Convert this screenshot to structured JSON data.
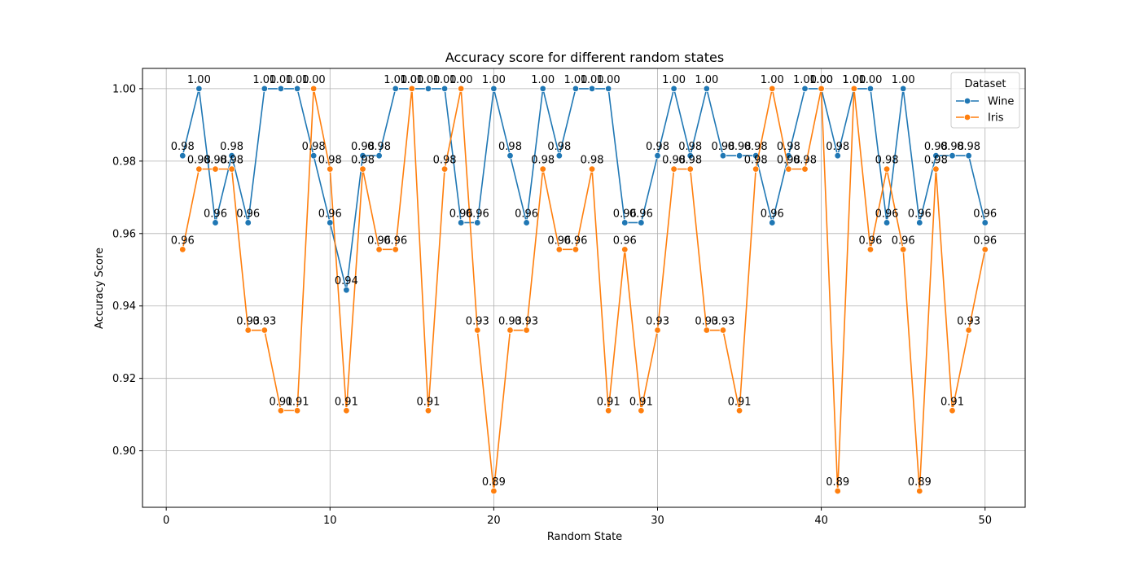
{
  "chart_data": {
    "type": "line",
    "title": "Accuracy score for different random states",
    "xlabel": "Random State",
    "ylabel": "Accuracy Score",
    "xlim": [
      -1.45,
      52.45
    ],
    "ylim": [
      0.8844,
      1.0056
    ],
    "xticks": [
      0,
      10,
      20,
      30,
      40,
      50
    ],
    "xtick_labels": [
      "0",
      "10",
      "20",
      "30",
      "40",
      "50"
    ],
    "yticks": [
      0.9,
      0.92,
      0.94,
      0.96,
      0.98,
      1.0
    ],
    "ytick_labels": [
      "0.90",
      "0.92",
      "0.94",
      "0.96",
      "0.98",
      "1.00"
    ],
    "grid": true,
    "legend": {
      "title": "Dataset",
      "placement": "top-right"
    },
    "x": [
      1,
      2,
      3,
      4,
      5,
      6,
      7,
      8,
      9,
      10,
      11,
      12,
      13,
      14,
      15,
      16,
      17,
      18,
      19,
      20,
      21,
      22,
      23,
      24,
      25,
      26,
      27,
      28,
      29,
      30,
      31,
      32,
      33,
      34,
      35,
      36,
      37,
      38,
      39,
      40,
      41,
      42,
      43,
      44,
      45,
      46,
      47,
      48,
      49,
      50
    ],
    "series": [
      {
        "name": "Wine",
        "color": "#1f77b4",
        "values": [
          0.9815,
          1.0,
          0.963,
          0.9815,
          0.963,
          1.0,
          1.0,
          1.0,
          0.9815,
          0.963,
          0.9444,
          0.9815,
          0.9815,
          1.0,
          1.0,
          1.0,
          1.0,
          0.963,
          0.963,
          1.0,
          0.9815,
          0.963,
          1.0,
          0.9815,
          1.0,
          1.0,
          1.0,
          0.963,
          0.963,
          0.9815,
          1.0,
          0.9815,
          1.0,
          0.9815,
          0.9815,
          0.9815,
          0.963,
          0.9815,
          1.0,
          1.0,
          0.9815,
          1.0,
          1.0,
          0.963,
          1.0,
          0.963,
          0.9815,
          0.9815,
          0.9815,
          0.963
        ],
        "labels": [
          "0.98",
          "1.00",
          "0.96",
          "0.98",
          "0.96",
          "1.00",
          "1.00",
          "1.00",
          "0.98",
          "0.96",
          "0.94",
          "0.98",
          "0.98",
          "1.00",
          "1.00",
          "1.00",
          "1.00",
          "0.96",
          "0.96",
          "1.00",
          "0.98",
          "0.96",
          "1.00",
          "0.98",
          "1.00",
          "1.00",
          "1.00",
          "0.96",
          "0.96",
          "0.98",
          "1.00",
          "0.98",
          "1.00",
          "0.98",
          "0.98",
          "0.98",
          "0.96",
          "0.98",
          "1.00",
          "1.00",
          "0.98",
          "1.00",
          "1.00",
          "0.96",
          "1.00",
          "0.96",
          "0.98",
          "0.98",
          "0.98",
          "0.96"
        ]
      },
      {
        "name": "Iris",
        "color": "#ff7f0e",
        "values": [
          0.9556,
          0.9778,
          0.9778,
          0.9778,
          0.9333,
          0.9333,
          0.9111,
          0.9111,
          1.0,
          0.9778,
          0.9111,
          0.9778,
          0.9556,
          0.9556,
          1.0,
          0.9111,
          0.9778,
          1.0,
          0.9333,
          0.8889,
          0.9333,
          0.9333,
          0.9778,
          0.9556,
          0.9556,
          0.9778,
          0.9111,
          0.9556,
          0.9111,
          0.9333,
          0.9778,
          0.9778,
          0.9333,
          0.9333,
          0.9111,
          0.9778,
          1.0,
          0.9778,
          0.9778,
          1.0,
          0.8889,
          1.0,
          0.9556,
          0.9778,
          0.9556,
          0.8889,
          0.9778,
          0.9111,
          0.9333,
          0.9556
        ],
        "labels": [
          "0.96",
          "0.98",
          "0.98",
          "0.98",
          "0.93",
          "0.93",
          "0.91",
          "0.91",
          "1.00",
          "0.98",
          "0.91",
          "0.98",
          "0.96",
          "0.96",
          "1.00",
          "0.91",
          "0.98",
          "1.00",
          "0.93",
          "0.89",
          "0.93",
          "0.93",
          "0.98",
          "0.96",
          "0.96",
          "0.98",
          "0.91",
          "0.96",
          "0.91",
          "0.93",
          "0.98",
          "0.98",
          "0.93",
          "0.93",
          "0.91",
          "0.98",
          "1.00",
          "0.98",
          "0.98",
          "1.00",
          "0.89",
          "1.00",
          "0.96",
          "0.98",
          "0.96",
          "0.89",
          "0.98",
          "0.91",
          "0.93",
          "0.96"
        ]
      }
    ]
  }
}
